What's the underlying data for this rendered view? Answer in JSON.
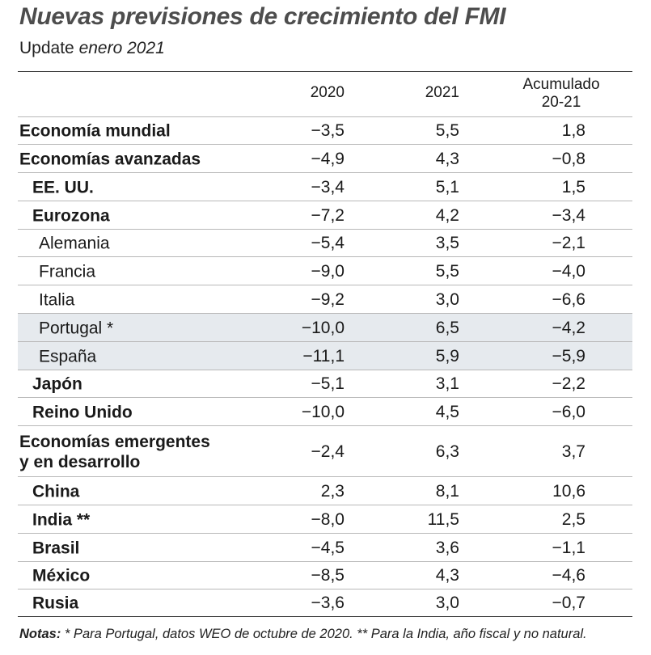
{
  "title": "Nuevas previsiones de crecimiento del FMI",
  "subtitle_prefix": "Update",
  "subtitle_em": "enero 2021",
  "columns": {
    "c1": "2020",
    "c2": "2021",
    "c3_line1": "Acumulado",
    "c3_line2": "20-21"
  },
  "rows": [
    {
      "label": "Economía mundial",
      "v2020": "−3,5",
      "v2021": "5,5",
      "acc": "1,8"
    },
    {
      "label": "Economías avanzadas",
      "v2020": "−4,9",
      "v2021": "4,3",
      "acc": "−0,8"
    },
    {
      "label": "EE. UU.",
      "v2020": "−3,4",
      "v2021": "5,1",
      "acc": "1,5"
    },
    {
      "label": "Eurozona",
      "v2020": "−7,2",
      "v2021": "4,2",
      "acc": "−3,4"
    },
    {
      "label": "Alemania",
      "v2020": "−5,4",
      "v2021": "3,5",
      "acc": "−2,1"
    },
    {
      "label": "Francia",
      "v2020": "−9,0",
      "v2021": "5,5",
      "acc": "−4,0"
    },
    {
      "label": "Italia",
      "v2020": "−9,2",
      "v2021": "3,0",
      "acc": "−6,6"
    },
    {
      "label": "Portugal *",
      "v2020": "−10,0",
      "v2021": "6,5",
      "acc": "−4,2"
    },
    {
      "label": "España",
      "v2020": "−11,1",
      "v2021": "5,9",
      "acc": "−5,9"
    },
    {
      "label": "Japón",
      "v2020": "−5,1",
      "v2021": "3,1",
      "acc": "−2,2"
    },
    {
      "label": "Reino Unido",
      "v2020": "−10,0",
      "v2021": "4,5",
      "acc": "−6,0"
    },
    {
      "label_line1": "Economías emergentes",
      "label_line2": "y en desarrollo",
      "v2020": "−2,4",
      "v2021": "6,3",
      "acc": "3,7"
    },
    {
      "label": "China",
      "v2020": "2,3",
      "v2021": "8,1",
      "acc": "10,6"
    },
    {
      "label": "India **",
      "v2020": "−8,0",
      "v2021": "11,5",
      "acc": "2,5"
    },
    {
      "label": "Brasil",
      "v2020": "−4,5",
      "v2021": "3,6",
      "acc": "−1,1"
    },
    {
      "label": "México",
      "v2020": "−8,5",
      "v2021": "4,3",
      "acc": "−4,6"
    },
    {
      "label": "Rusia",
      "v2020": "−3,6",
      "v2021": "3,0",
      "acc": "−0,7"
    }
  ],
  "notes": {
    "label": "Notas:",
    "text": " * Para Portugal, datos WEO de octubre de 2020. ** Para la India, año fiscal y no natural."
  },
  "colors": {
    "title": "#4d4d4d",
    "shaded_row": "#e6eaee"
  }
}
